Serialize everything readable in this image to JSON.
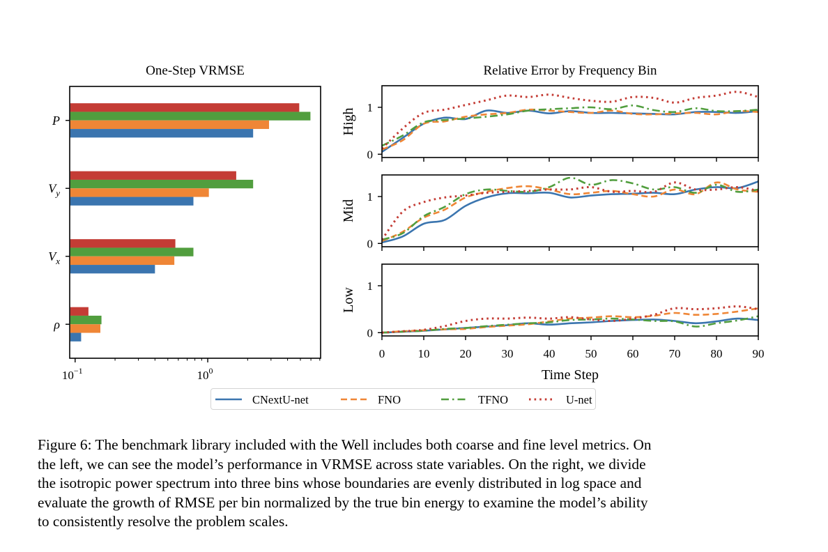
{
  "chart_data": [
    {
      "type": "bar",
      "orientation": "horizontal",
      "title": "One-Step VRMSE",
      "xlabel": "",
      "ylabel": "",
      "xscale": "log",
      "xlim": [
        0.091,
        7.1
      ],
      "xticks": [
        {
          "value": 0.1,
          "base": "10",
          "exp": "−1"
        },
        {
          "value": 1,
          "base": "10",
          "exp": "0"
        }
      ],
      "categories": [
        "P",
        "V_y",
        "V_x",
        "ρ"
      ],
      "category_labels": [
        {
          "main": "P",
          "sub": ""
        },
        {
          "main": "V",
          "sub": "y"
        },
        {
          "main": "V",
          "sub": "x"
        },
        {
          "main": "ρ",
          "sub": ""
        }
      ],
      "series": [
        {
          "name": "U-net",
          "color": "#c43c35",
          "values": [
            4.9,
            1.64,
            0.57,
            0.126
          ]
        },
        {
          "name": "TFNO",
          "color": "#519e3e",
          "values": [
            5.95,
            2.2,
            0.78,
            0.158
          ]
        },
        {
          "name": "FNO",
          "color": "#ef8636",
          "values": [
            2.9,
            1.02,
            0.56,
            0.155
          ]
        },
        {
          "name": "CNextU-net",
          "color": "#3b75af",
          "values": [
            2.2,
            0.78,
            0.4,
            0.111
          ]
        }
      ],
      "grid": false
    },
    {
      "type": "line",
      "title": "Relative Error by Frequency Bin",
      "xlabel": "Time Step",
      "xlim": [
        0,
        90
      ],
      "xticks": [
        0,
        10,
        20,
        30,
        40,
        50,
        60,
        70,
        80,
        90
      ],
      "x": [
        0,
        5,
        10,
        15,
        20,
        25,
        30,
        35,
        40,
        45,
        50,
        55,
        60,
        65,
        70,
        75,
        80,
        85,
        90
      ],
      "grid": false,
      "legend_position": "bottom-center",
      "panels": [
        {
          "ylabel": "High",
          "ylim": [
            -0.07,
            1.46
          ],
          "yticks": [
            0,
            1
          ],
          "series": [
            {
              "name": "CNextU-net",
              "color": "#3b75af",
              "style": "solid",
              "values": [
                0.05,
                0.35,
                0.65,
                0.78,
                0.75,
                0.93,
                0.88,
                0.93,
                0.87,
                0.92,
                0.88,
                0.88,
                0.87,
                0.86,
                0.85,
                0.9,
                0.9,
                0.88,
                0.92
              ]
            },
            {
              "name": "FNO",
              "color": "#ef8636",
              "style": "dashed",
              "values": [
                0.1,
                0.3,
                0.65,
                0.7,
                0.8,
                0.85,
                0.88,
                0.95,
                0.93,
                0.9,
                0.88,
                0.93,
                0.86,
                0.85,
                0.87,
                0.88,
                0.85,
                0.92,
                0.9
              ]
            },
            {
              "name": "TFNO",
              "color": "#519e3e",
              "style": "dashdot",
              "values": [
                0.18,
                0.4,
                0.68,
                0.73,
                0.76,
                0.8,
                0.85,
                0.93,
                0.96,
                0.98,
                1.0,
                0.96,
                1.04,
                0.94,
                0.9,
                0.98,
                0.92,
                0.92,
                0.95
              ]
            },
            {
              "name": "U-net",
              "color": "#c43c35",
              "style": "dotted",
              "values": [
                0.12,
                0.55,
                0.88,
                0.95,
                1.05,
                1.15,
                1.25,
                1.22,
                1.27,
                1.2,
                1.14,
                1.12,
                1.22,
                1.2,
                1.1,
                1.2,
                1.25,
                1.33,
                1.22
              ]
            }
          ]
        },
        {
          "ylabel": "Mid",
          "ylim": [
            -0.07,
            1.46
          ],
          "yticks": [
            0,
            1
          ],
          "series": [
            {
              "name": "CNextU-net",
              "color": "#3b75af",
              "style": "solid",
              "values": [
                0.02,
                0.15,
                0.42,
                0.5,
                0.8,
                0.98,
                1.07,
                1.07,
                1.08,
                0.98,
                1.02,
                1.05,
                1.06,
                1.08,
                1.05,
                1.15,
                1.2,
                1.18,
                1.32
              ]
            },
            {
              "name": "FNO",
              "color": "#ef8636",
              "style": "dashed",
              "values": [
                0.05,
                0.25,
                0.55,
                0.72,
                0.98,
                1.1,
                1.18,
                1.22,
                1.15,
                1.05,
                1.08,
                1.12,
                1.05,
                1.0,
                1.15,
                1.05,
                1.3,
                1.15,
                1.1
              ]
            },
            {
              "name": "TFNO",
              "color": "#519e3e",
              "style": "dashdot",
              "values": [
                0.08,
                0.22,
                0.58,
                0.78,
                1.05,
                1.15,
                1.12,
                1.1,
                1.2,
                1.4,
                1.25,
                1.35,
                1.28,
                1.15,
                1.2,
                1.08,
                1.25,
                1.1,
                1.15
              ]
            },
            {
              "name": "U-net",
              "color": "#c43c35",
              "style": "dotted",
              "values": [
                0.08,
                0.68,
                0.88,
                0.98,
                1.02,
                1.08,
                1.1,
                1.12,
                1.15,
                1.15,
                1.2,
                1.1,
                1.12,
                1.1,
                1.3,
                1.15,
                1.15,
                1.2,
                1.12
              ]
            }
          ]
        },
        {
          "ylabel": "Low",
          "ylim": [
            -0.07,
            1.46
          ],
          "yticks": [
            0,
            1
          ],
          "series": [
            {
              "name": "CNextU-net",
              "color": "#3b75af",
              "style": "solid",
              "values": [
                0.0,
                0.02,
                0.04,
                0.07,
                0.1,
                0.13,
                0.16,
                0.2,
                0.17,
                0.2,
                0.22,
                0.25,
                0.27,
                0.28,
                0.25,
                0.2,
                0.24,
                0.3,
                0.27
              ]
            },
            {
              "name": "FNO",
              "color": "#ef8636",
              "style": "dashed",
              "values": [
                0.0,
                0.03,
                0.05,
                0.07,
                0.08,
                0.12,
                0.15,
                0.18,
                0.24,
                0.3,
                0.32,
                0.35,
                0.33,
                0.36,
                0.42,
                0.38,
                0.4,
                0.45,
                0.52
              ]
            },
            {
              "name": "TFNO",
              "color": "#519e3e",
              "style": "dashdot",
              "values": [
                0.0,
                0.02,
                0.04,
                0.08,
                0.1,
                0.14,
                0.17,
                0.2,
                0.22,
                0.27,
                0.28,
                0.3,
                0.28,
                0.25,
                0.24,
                0.13,
                0.2,
                0.26,
                0.35
              ]
            },
            {
              "name": "U-net",
              "color": "#c43c35",
              "style": "dotted",
              "values": [
                0.0,
                0.03,
                0.06,
                0.14,
                0.25,
                0.3,
                0.3,
                0.32,
                0.3,
                0.33,
                0.28,
                0.25,
                0.3,
                0.38,
                0.52,
                0.5,
                0.52,
                0.56,
                0.5
              ]
            }
          ]
        }
      ]
    }
  ],
  "legend": {
    "items": [
      {
        "name": "CNextU-net",
        "color": "#3b75af",
        "style": "solid"
      },
      {
        "name": "FNO",
        "color": "#ef8636",
        "style": "dashed"
      },
      {
        "name": "TFNO",
        "color": "#519e3e",
        "style": "dashdot"
      },
      {
        "name": "U-net",
        "color": "#c43c35",
        "style": "dotted"
      }
    ]
  },
  "caption": {
    "lines": [
      "Figure 6: The benchmark library included with the Well includes both coarse and fine level metrics. On",
      "the left, we can see the model’s performance in VRMSE across state variables. On the right, we divide",
      "the isotropic power spectrum into three bins whose boundaries are evenly distributed in log space and",
      "evaluate the growth of RMSE per bin normalized by the true bin energy to examine the model’s ability",
      "to consistently resolve the problem scales."
    ]
  }
}
